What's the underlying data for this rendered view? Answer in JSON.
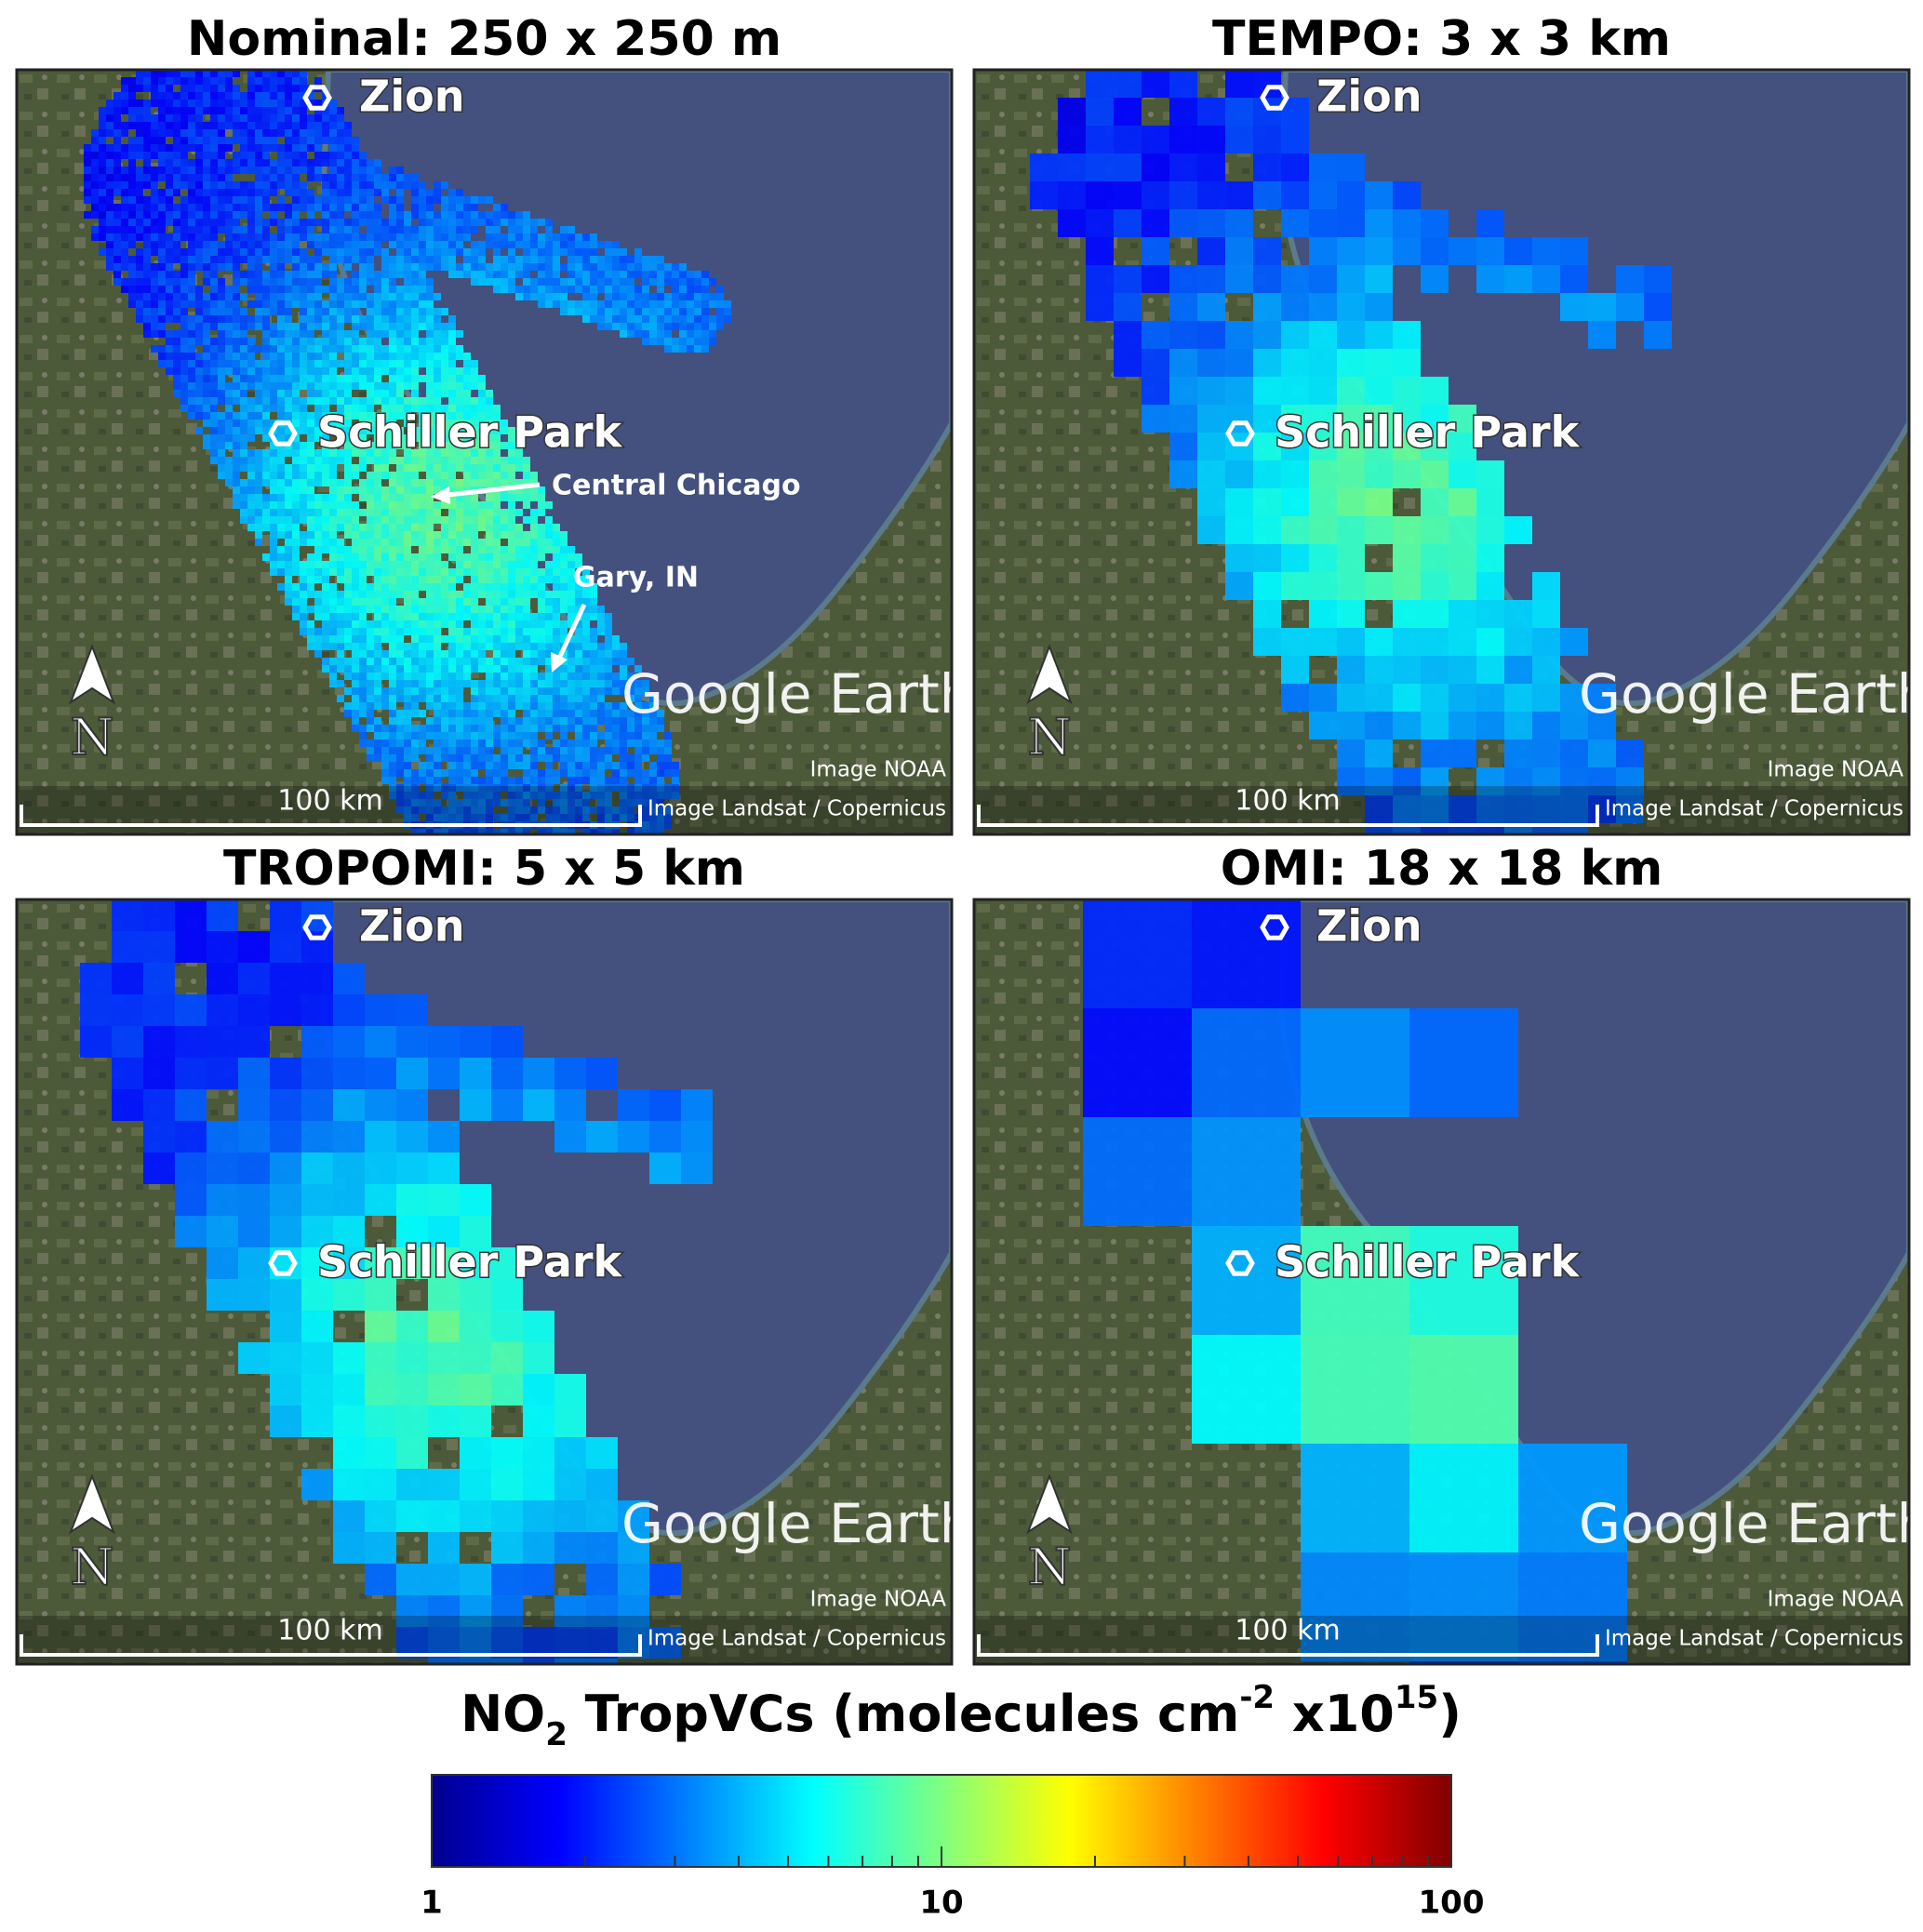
{
  "panels": [
    {
      "title": "Nominal: 250 x 250 m",
      "labels": {
        "zion": "Zion",
        "schiller": "Schiller Park",
        "google": "Google Earth",
        "noaa": "Image NOAA",
        "landsat": "Image Landsat / Copernicus",
        "scale": "100 km",
        "north": "N"
      },
      "annotations": [
        "Central Chicago",
        "Gary, IN"
      ]
    },
    {
      "title": "TEMPO: 3 x 3 km",
      "labels": {
        "zion": "Zion",
        "schiller": "Schiller Park",
        "google": "Google Earth",
        "noaa": "Image NOAA",
        "landsat": "Image Landsat / Copernicus",
        "scale": "100 km",
        "north": "N"
      }
    },
    {
      "title": "TROPOMI: 5 x 5 km",
      "labels": {
        "zion": "Zion",
        "schiller": "Schiller Park",
        "google": "Google Earth",
        "noaa": "Image NOAA",
        "landsat": "Image Landsat / Copernicus",
        "scale": "100 km",
        "north": "N"
      }
    },
    {
      "title": "OMI: 18 x 18 km",
      "labels": {
        "zion": "Zion",
        "schiller": "Schiller Park",
        "google": "Google Earth",
        "noaa": "Image NOAA",
        "landsat": "Image Landsat / Copernicus",
        "scale": "100 km",
        "north": "N"
      }
    }
  ],
  "colorbar": {
    "label": [
      "NO",
      "2",
      " TropVCs (molecules cm",
      "-2",
      " x10",
      "15",
      ")"
    ],
    "lim": [
      1,
      100
    ],
    "log": true,
    "ticks": [
      1,
      10,
      100
    ],
    "minor_ticks": [
      2,
      3,
      4,
      5,
      6,
      7,
      8,
      9,
      20,
      30,
      40,
      50,
      60,
      70,
      80,
      90
    ]
  }
}
